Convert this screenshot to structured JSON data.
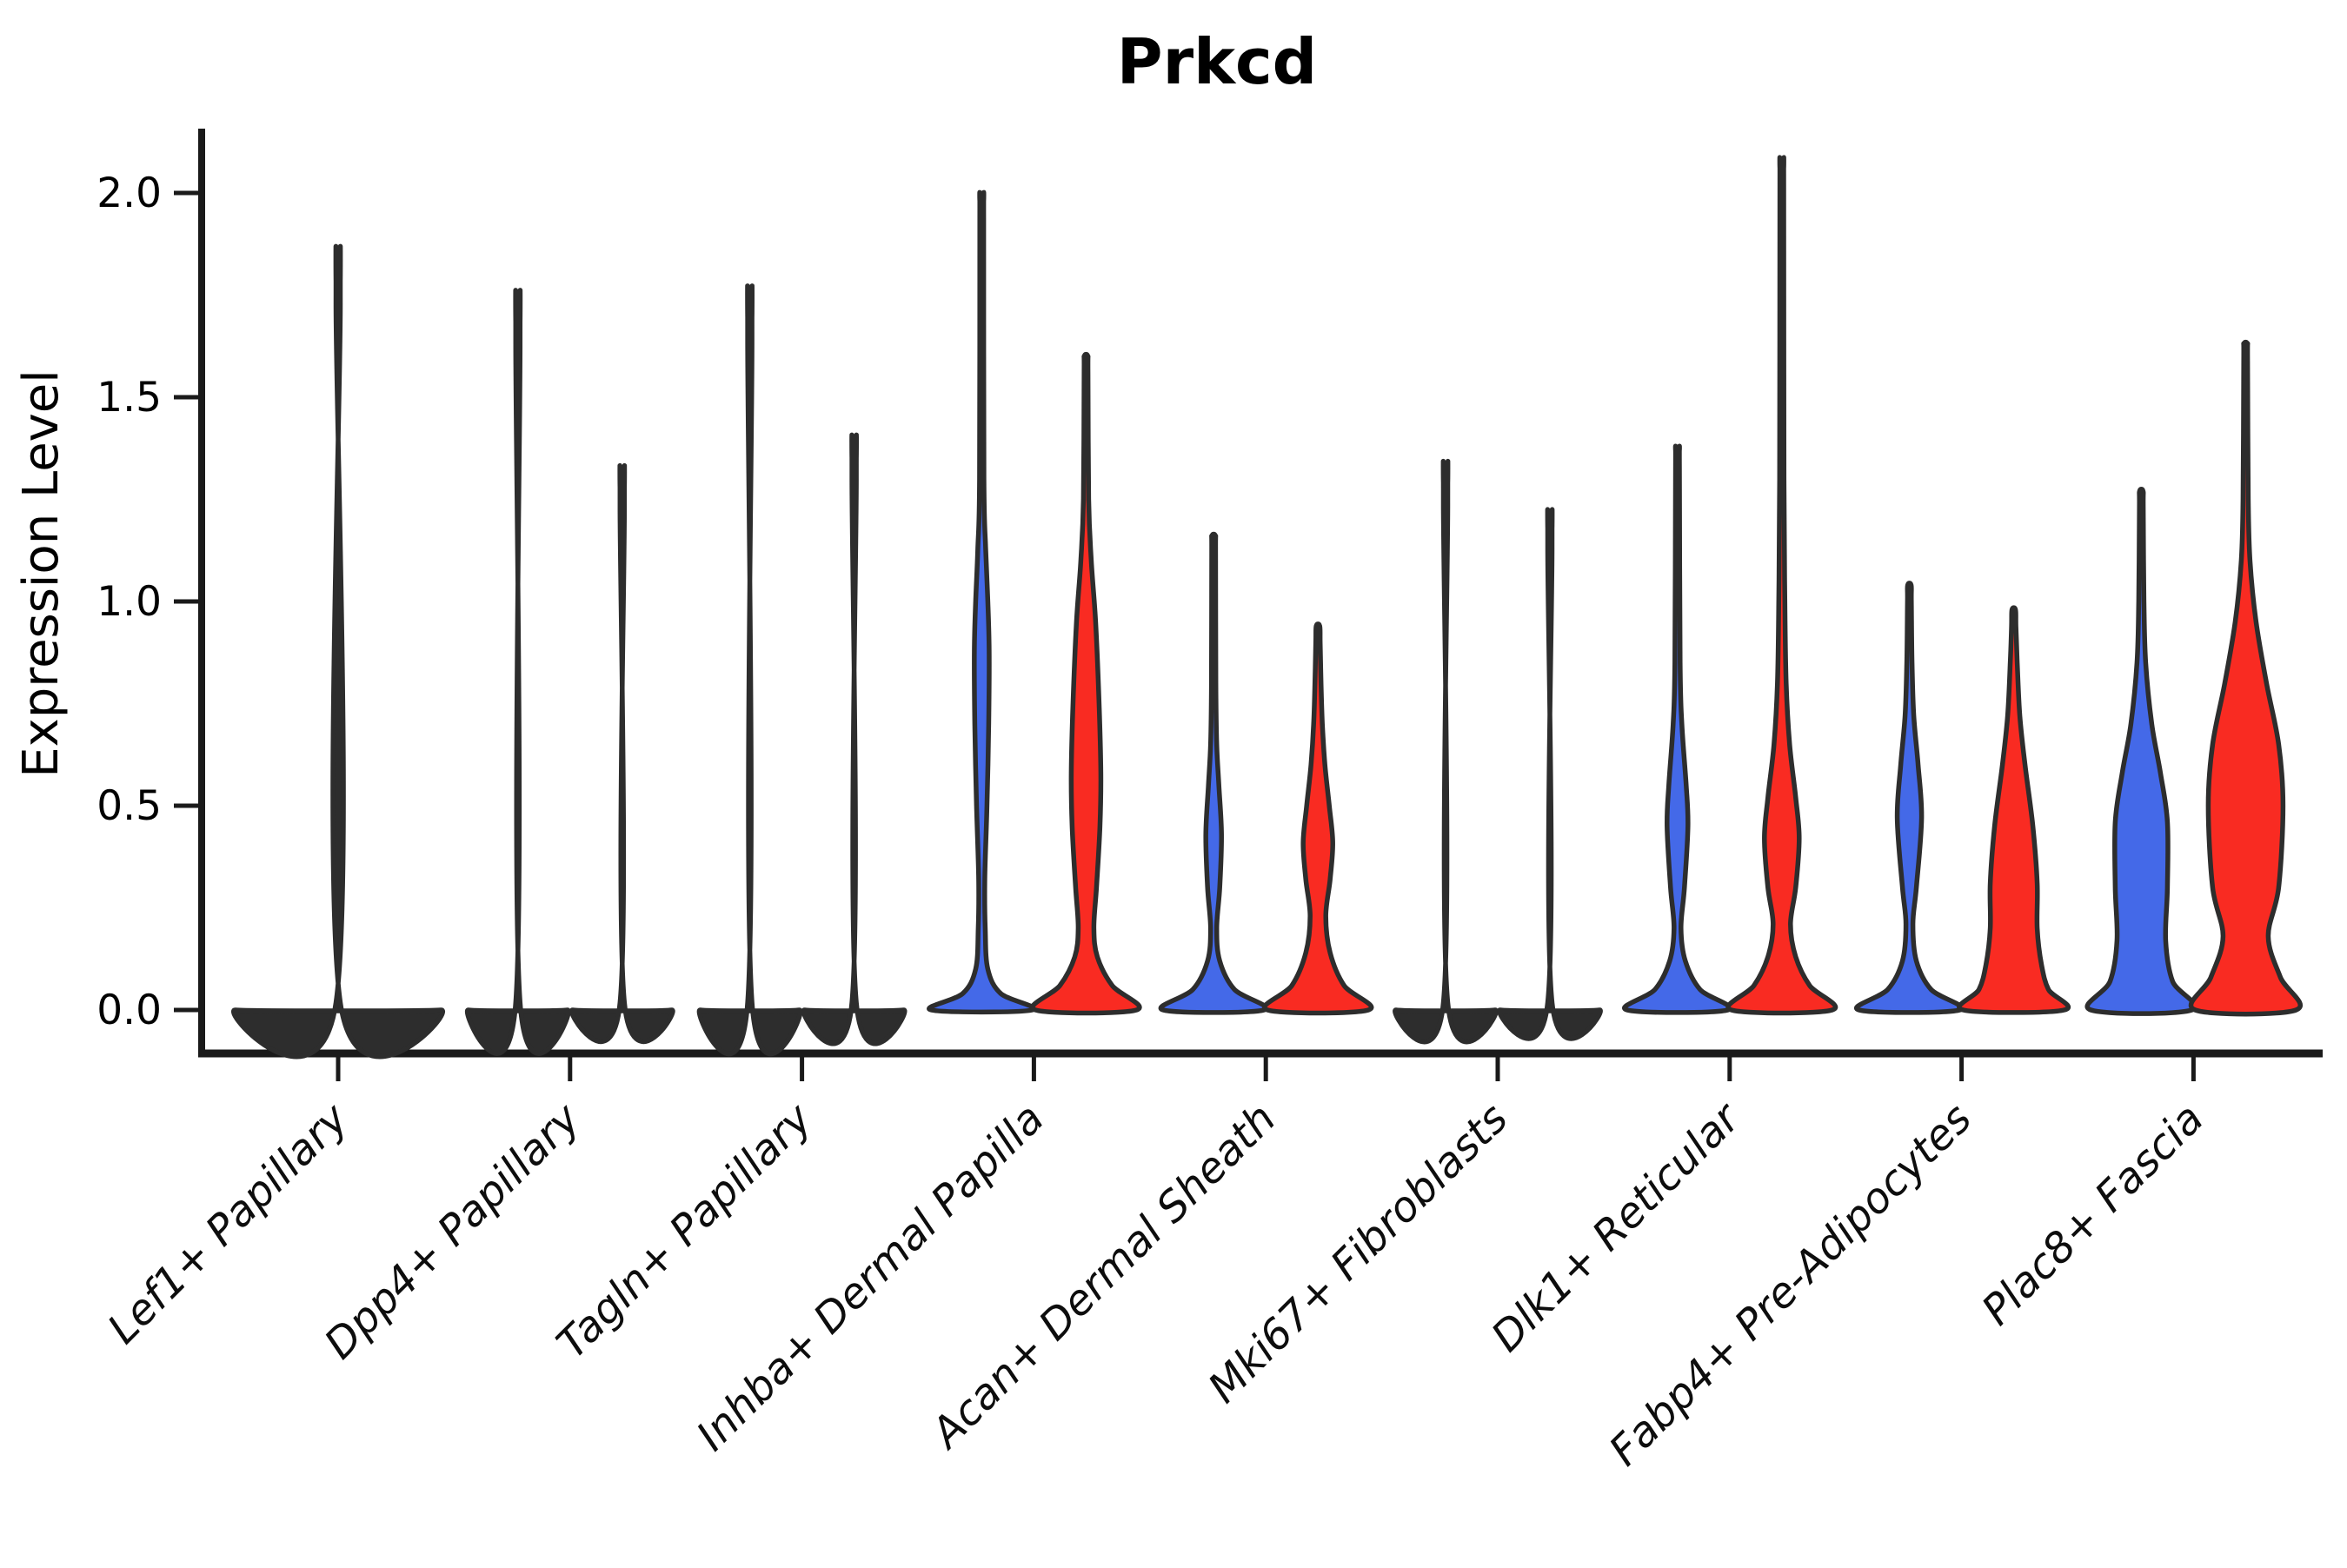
{
  "title": "Prkcd",
  "axes": {
    "ylabel": "Expression Level",
    "ytick_labels": [
      "0.0",
      "0.5",
      "1.0",
      "1.5",
      "2.0"
    ]
  },
  "chart_data": {
    "type": "violin",
    "title": "Prkcd",
    "xlabel": "",
    "ylabel": "Expression Level",
    "yticks": [
      0.0,
      0.5,
      1.0,
      1.5,
      2.0
    ],
    "ylim": [
      -0.11,
      2.15
    ],
    "grid": false,
    "legend": "none",
    "categories": [
      "Lef1+ Papillary",
      "Dpp4+ Papillary",
      "Tagln+ Papillary",
      "Inhba+ Dermal Papilla",
      "Acan+ Dermal Sheath",
      "Mki67+ Fibroblasts",
      "Dlk1+ Reticular",
      "Fabp4+ Pre-Adipocytes",
      "Plac8+ Fascia"
    ],
    "split_colors": {
      "blue": "#4469E8",
      "red": "#F92B22",
      "dark": "#2D2D2D",
      "outline": "#2D2D2D"
    },
    "groups": [
      {
        "category": "Lef1+ Papillary",
        "violins": [
          {
            "side": "center",
            "fill": "dark",
            "shape": "spike",
            "max": 1.77,
            "profile": [
              [
                0,
                118
              ],
              [
                0.018,
                2.5
              ],
              [
                1.73,
                2.5
              ],
              [
                1.77,
                2.2
              ]
            ]
          }
        ]
      },
      {
        "category": "Dpp4+ Papillary",
        "violins": [
          {
            "side": "left",
            "fill": "dark",
            "shape": "spike",
            "max": 1.67,
            "profile": [
              [
                0,
                57
              ],
              [
                0.018,
                2.5
              ],
              [
                1.63,
                2.5
              ],
              [
                1.67,
                2.2
              ]
            ]
          },
          {
            "side": "right",
            "fill": "dark",
            "shape": "spike",
            "max": 1.27,
            "profile": [
              [
                0,
                57
              ],
              [
                0.018,
                2.5
              ],
              [
                1.23,
                2.5
              ],
              [
                1.27,
                2.2
              ]
            ]
          }
        ]
      },
      {
        "category": "Tagln+ Papillary",
        "violins": [
          {
            "side": "left",
            "fill": "dark",
            "shape": "spike",
            "max": 1.68,
            "profile": [
              [
                0,
                57
              ],
              [
                0.018,
                2.5
              ],
              [
                1.64,
                2.5
              ],
              [
                1.68,
                2.2
              ]
            ]
          },
          {
            "side": "right",
            "fill": "dark",
            "shape": "spike",
            "max": 1.34,
            "profile": [
              [
                0,
                57
              ],
              [
                0.018,
                2.5
              ],
              [
                1.3,
                2.5
              ],
              [
                1.34,
                2.2
              ]
            ]
          }
        ]
      },
      {
        "category": "Inhba+ Dermal Papilla",
        "violins": [
          {
            "side": "left",
            "fill": "blue",
            "shape": "violin",
            "max": 1.98,
            "profile": [
              [
                0,
                58
              ],
              [
                0.04,
                22
              ],
              [
                0.1,
                7
              ],
              [
                0.2,
                4
              ],
              [
                0.32,
                3.5
              ],
              [
                0.5,
                6
              ],
              [
                0.7,
                8
              ],
              [
                0.88,
                8.5
              ],
              [
                1.0,
                7
              ],
              [
                1.13,
                4.5
              ],
              [
                1.3,
                2.5
              ],
              [
                1.94,
                2.2
              ],
              [
                1.98,
                2
              ]
            ]
          },
          {
            "side": "right",
            "fill": "red",
            "shape": "violin",
            "max": 1.6,
            "profile": [
              [
                0,
                58
              ],
              [
                0.06,
                30
              ],
              [
                0.13,
                13
              ],
              [
                0.2,
                9
              ],
              [
                0.3,
                12
              ],
              [
                0.45,
                16
              ],
              [
                0.58,
                17
              ],
              [
                0.75,
                15
              ],
              [
                0.95,
                11
              ],
              [
                1.1,
                6
              ],
              [
                1.25,
                3
              ],
              [
                1.56,
                2.2
              ],
              [
                1.6,
                2
              ]
            ]
          }
        ]
      },
      {
        "category": "Acan+ Dermal Sheath",
        "violins": [
          {
            "side": "left",
            "fill": "blue",
            "shape": "violin",
            "max": 1.16,
            "profile": [
              [
                0,
                58
              ],
              [
                0.05,
                24
              ],
              [
                0.12,
                7
              ],
              [
                0.2,
                3.5
              ],
              [
                0.3,
                7
              ],
              [
                0.43,
                9
              ],
              [
                0.55,
                6
              ],
              [
                0.65,
                3.5
              ],
              [
                0.8,
                2.5
              ],
              [
                1.12,
                2.2
              ],
              [
                1.16,
                2
              ]
            ]
          },
          {
            "side": "right",
            "fill": "red",
            "shape": "violin",
            "max": 0.94,
            "profile": [
              [
                0,
                58
              ],
              [
                0.06,
                30
              ],
              [
                0.14,
                14
              ],
              [
                0.23,
                9
              ],
              [
                0.32,
                14
              ],
              [
                0.41,
                17
              ],
              [
                0.5,
                13
              ],
              [
                0.6,
                8
              ],
              [
                0.7,
                5
              ],
              [
                0.8,
                3.5
              ],
              [
                0.9,
                2.5
              ],
              [
                0.94,
                2
              ]
            ]
          }
        ]
      },
      {
        "category": "Mki67+ Fibroblasts",
        "violins": [
          {
            "side": "left",
            "fill": "dark",
            "shape": "spike",
            "max": 1.28,
            "profile": [
              [
                0,
                57
              ],
              [
                0.018,
                2.5
              ],
              [
                1.24,
                2.5
              ],
              [
                1.28,
                2.2
              ]
            ]
          },
          {
            "side": "right",
            "fill": "dark",
            "shape": "spike",
            "max": 1.17,
            "profile": [
              [
                0,
                57
              ],
              [
                0.018,
                2.5
              ],
              [
                1.13,
                2.5
              ],
              [
                1.17,
                2.2
              ]
            ]
          }
        ]
      },
      {
        "category": "Dlk1+ Reticular",
        "violins": [
          {
            "side": "left",
            "fill": "blue",
            "shape": "violin",
            "max": 1.37,
            "profile": [
              [
                0,
                58
              ],
              [
                0.05,
                26
              ],
              [
                0.12,
                9
              ],
              [
                0.2,
                4
              ],
              [
                0.3,
                8
              ],
              [
                0.45,
                12
              ],
              [
                0.55,
                10
              ],
              [
                0.7,
                5
              ],
              [
                0.85,
                3
              ],
              [
                1.33,
                2.2
              ],
              [
                1.37,
                2
              ]
            ]
          },
          {
            "side": "right",
            "fill": "red",
            "shape": "violin",
            "max": 2.06,
            "profile": [
              [
                0,
                58
              ],
              [
                0.06,
                32
              ],
              [
                0.13,
                16
              ],
              [
                0.21,
                10
              ],
              [
                0.3,
                16
              ],
              [
                0.42,
                20
              ],
              [
                0.52,
                16
              ],
              [
                0.65,
                9
              ],
              [
                0.8,
                5
              ],
              [
                1.0,
                3.5
              ],
              [
                1.3,
                2.5
              ],
              [
                2.02,
                2.2
              ],
              [
                2.06,
                2
              ]
            ]
          }
        ]
      },
      {
        "category": "Fabp4+ Pre-Adipocytes",
        "violins": [
          {
            "side": "left",
            "fill": "blue",
            "shape": "violin",
            "max": 1.04,
            "profile": [
              [
                0,
                58
              ],
              [
                0.05,
                25
              ],
              [
                0.12,
                8
              ],
              [
                0.21,
                4
              ],
              [
                0.3,
                8
              ],
              [
                0.47,
                14
              ],
              [
                0.6,
                10
              ],
              [
                0.72,
                5
              ],
              [
                0.85,
                3
              ],
              [
                1.0,
                2.2
              ],
              [
                1.04,
                2
              ]
            ]
          },
          {
            "side": "right",
            "fill": "red",
            "shape": "violin",
            "max": 0.98,
            "profile": [
              [
                0,
                58
              ],
              [
                0.05,
                40
              ],
              [
                0.11,
                32
              ],
              [
                0.2,
                27
              ],
              [
                0.31,
                27
              ],
              [
                0.45,
                22
              ],
              [
                0.6,
                13
              ],
              [
                0.72,
                7
              ],
              [
                0.85,
                4
              ],
              [
                0.94,
                2.5
              ],
              [
                0.98,
                2
              ]
            ]
          }
        ]
      },
      {
        "category": "Plac8+ Fascia",
        "violins": [
          {
            "side": "left",
            "fill": "blue",
            "shape": "violin",
            "max": 1.27,
            "profile": [
              [
                0,
                58
              ],
              [
                0.07,
                36
              ],
              [
                0.17,
                28
              ],
              [
                0.3,
                30
              ],
              [
                0.46,
                30
              ],
              [
                0.58,
                22
              ],
              [
                0.7,
                12
              ],
              [
                0.85,
                5
              ],
              [
                1.0,
                3
              ],
              [
                1.23,
                2.2
              ],
              [
                1.27,
                2
              ]
            ]
          },
          {
            "side": "right",
            "fill": "red",
            "shape": "violin",
            "max": 1.63,
            "profile": [
              [
                0,
                58
              ],
              [
                0.08,
                40
              ],
              [
                0.18,
                26
              ],
              [
                0.3,
                38
              ],
              [
                0.5,
                43
              ],
              [
                0.65,
                38
              ],
              [
                0.8,
                24
              ],
              [
                0.95,
                12
              ],
              [
                1.1,
                5
              ],
              [
                1.25,
                3
              ],
              [
                1.59,
                2.2
              ],
              [
                1.63,
                2
              ]
            ]
          }
        ]
      }
    ]
  }
}
